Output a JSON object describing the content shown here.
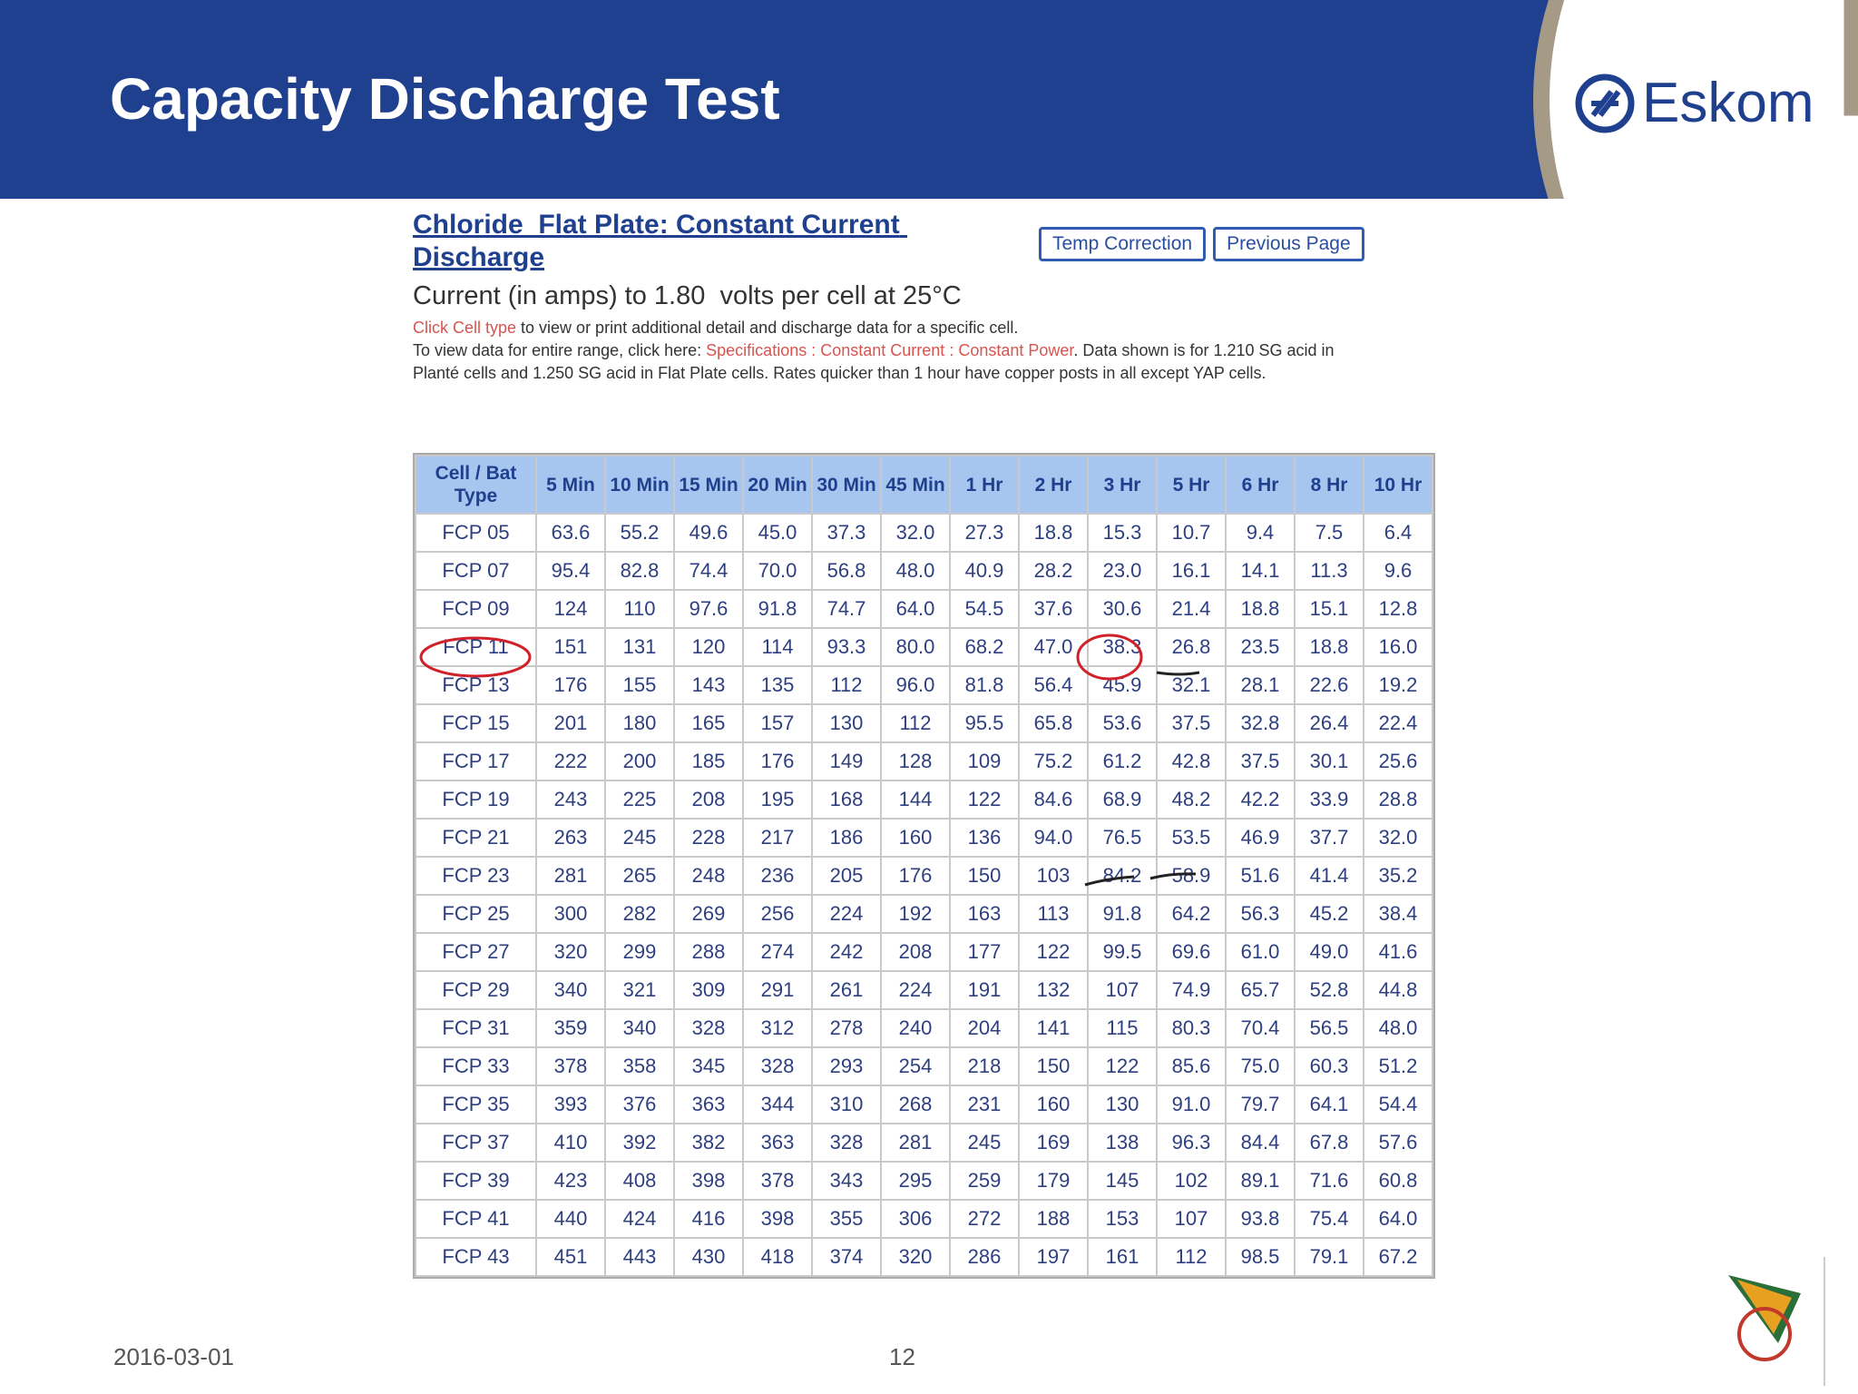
{
  "header": {
    "title": "Capacity Discharge Test",
    "logo": "Eskom"
  },
  "panel": {
    "heading": "Chloride  Flat Plate: Constant Current Discharge",
    "buttons": [
      "Temp Correction",
      "Previous Page"
    ],
    "subtitle": "Current (in amps) to 1.80  volts per cell at 25°C",
    "note_lines": [
      [
        {
          "text": "Click Cell type",
          "style": "link"
        },
        {
          "text": " to view or print additional detail and discharge data for a specific cell.",
          "style": "plain"
        }
      ],
      [
        {
          "text": "To view data for entire range, click here: ",
          "style": "plain"
        },
        {
          "text": "Specifications",
          "style": "link"
        },
        {
          "text": " : ",
          "style": "link"
        },
        {
          "text": "Constant Current",
          "style": "link"
        },
        {
          "text": " : ",
          "style": "link"
        },
        {
          "text": "Constant Power",
          "style": "link"
        },
        {
          "text": ". Data shown is for 1.210 SG acid in Planté cells and 1.250 SG acid in Flat Plate cells. Rates quicker than 1 hour have copper posts in all except YAP cells.",
          "style": "plain"
        }
      ]
    ]
  },
  "table": {
    "columns": [
      "Cell / Bat Type",
      "5 Min",
      "10 Min",
      "15 Min",
      "20 Min",
      "30 Min",
      "45 Min",
      "1 Hr",
      "2 Hr",
      "3 Hr",
      "5 Hr",
      "6 Hr",
      "8 Hr",
      "10 Hr"
    ],
    "rows": [
      [
        "FCP 05",
        "63.6",
        "55.2",
        "49.6",
        "45.0",
        "37.3",
        "32.0",
        "27.3",
        "18.8",
        "15.3",
        "10.7",
        "9.4",
        "7.5",
        "6.4"
      ],
      [
        "FCP 07",
        "95.4",
        "82.8",
        "74.4",
        "70.0",
        "56.8",
        "48.0",
        "40.9",
        "28.2",
        "23.0",
        "16.1",
        "14.1",
        "11.3",
        "9.6"
      ],
      [
        "FCP 09",
        "124",
        "110",
        "97.6",
        "91.8",
        "74.7",
        "64.0",
        "54.5",
        "37.6",
        "30.6",
        "21.4",
        "18.8",
        "15.1",
        "12.8"
      ],
      [
        "FCP 11",
        "151",
        "131",
        "120",
        "114",
        "93.3",
        "80.0",
        "68.2",
        "47.0",
        "38.3",
        "26.8",
        "23.5",
        "18.8",
        "16.0"
      ],
      [
        "FCP 13",
        "176",
        "155",
        "143",
        "135",
        "112",
        "96.0",
        "81.8",
        "56.4",
        "45.9",
        "32.1",
        "28.1",
        "22.6",
        "19.2"
      ],
      [
        "FCP 15",
        "201",
        "180",
        "165",
        "157",
        "130",
        "112",
        "95.5",
        "65.8",
        "53.6",
        "37.5",
        "32.8",
        "26.4",
        "22.4"
      ],
      [
        "FCP 17",
        "222",
        "200",
        "185",
        "176",
        "149",
        "128",
        "109",
        "75.2",
        "61.2",
        "42.8",
        "37.5",
        "30.1",
        "25.6"
      ],
      [
        "FCP 19",
        "243",
        "225",
        "208",
        "195",
        "168",
        "144",
        "122",
        "84.6",
        "68.9",
        "48.2",
        "42.2",
        "33.9",
        "28.8"
      ],
      [
        "FCP 21",
        "263",
        "245",
        "228",
        "217",
        "186",
        "160",
        "136",
        "94.0",
        "76.5",
        "53.5",
        "46.9",
        "37.7",
        "32.0"
      ],
      [
        "FCP 23",
        "281",
        "265",
        "248",
        "236",
        "205",
        "176",
        "150",
        "103",
        "84.2",
        "58.9",
        "51.6",
        "41.4",
        "35.2"
      ],
      [
        "FCP 25",
        "300",
        "282",
        "269",
        "256",
        "224",
        "192",
        "163",
        "113",
        "91.8",
        "64.2",
        "56.3",
        "45.2",
        "38.4"
      ],
      [
        "FCP 27",
        "320",
        "299",
        "288",
        "274",
        "242",
        "208",
        "177",
        "122",
        "99.5",
        "69.6",
        "61.0",
        "49.0",
        "41.6"
      ],
      [
        "FCP 29",
        "340",
        "321",
        "309",
        "291",
        "261",
        "224",
        "191",
        "132",
        "107",
        "74.9",
        "65.7",
        "52.8",
        "44.8"
      ],
      [
        "FCP 31",
        "359",
        "340",
        "328",
        "312",
        "278",
        "240",
        "204",
        "141",
        "115",
        "80.3",
        "70.4",
        "56.5",
        "48.0"
      ],
      [
        "FCP 33",
        "378",
        "358",
        "345",
        "328",
        "293",
        "254",
        "218",
        "150",
        "122",
        "85.6",
        "75.0",
        "60.3",
        "51.2"
      ],
      [
        "FCP 35",
        "393",
        "376",
        "363",
        "344",
        "310",
        "268",
        "231",
        "160",
        "130",
        "91.0",
        "79.7",
        "64.1",
        "54.4"
      ],
      [
        "FCP 37",
        "410",
        "392",
        "382",
        "363",
        "328",
        "281",
        "245",
        "169",
        "138",
        "96.3",
        "84.4",
        "67.8",
        "57.6"
      ],
      [
        "FCP 39",
        "423",
        "408",
        "398",
        "378",
        "343",
        "295",
        "259",
        "179",
        "145",
        "102",
        "89.1",
        "71.6",
        "60.8"
      ],
      [
        "FCP 41",
        "440",
        "424",
        "416",
        "398",
        "355",
        "306",
        "272",
        "188",
        "153",
        "107",
        "93.8",
        "75.4",
        "64.0"
      ],
      [
        "FCP 43",
        "451",
        "443",
        "430",
        "418",
        "374",
        "320",
        "286",
        "197",
        "161",
        "112",
        "98.5",
        "79.1",
        "67.2"
      ]
    ]
  },
  "footer": {
    "date": "2016-03-01",
    "page": "12"
  }
}
